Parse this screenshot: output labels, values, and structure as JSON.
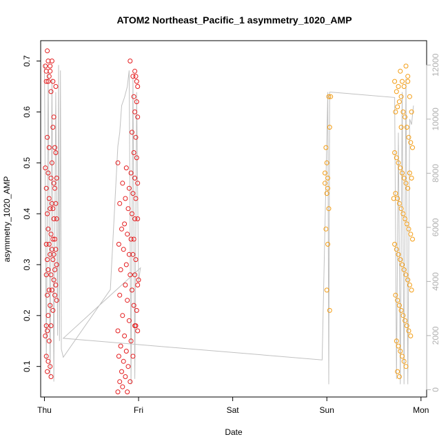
{
  "chart_data": {
    "type": "scatter",
    "title": "ATOM2 Northeast_Pacific_1 asymmetry_1020_AMP",
    "xlabel": "Date",
    "ylabel": "asymmetry_1020_AMP",
    "x_ticks": [
      "Thu",
      "Fri",
      "Sat",
      "Sun",
      "Mon"
    ],
    "x_range_days": [
      -0.04,
      4.06
    ],
    "y_left_ticks": [
      0.1,
      0.2,
      0.3,
      0.4,
      0.5,
      0.6,
      0.7
    ],
    "y_left_range": [
      0.04,
      0.74
    ],
    "y_right_ticks": [
      0,
      2000,
      4000,
      6000,
      8000,
      10000,
      12000
    ],
    "y_right_range": [
      -270,
      12900
    ],
    "grid": false,
    "colors": {
      "series_red": "#e41a1c",
      "series_orange": "#f39c12",
      "line": "#c0c0c0",
      "right_axis": "#b0b0b0"
    },
    "series": [
      {
        "color": "red",
        "points": [
          [
            0.01,
            0.69
          ],
          [
            0.02,
            0.68
          ],
          [
            0.03,
            0.72
          ],
          [
            0.04,
            0.7
          ],
          [
            0.05,
            0.67
          ],
          [
            0.06,
            0.68
          ],
          [
            0.07,
            0.64
          ],
          [
            0.08,
            0.7
          ],
          [
            0.09,
            0.66
          ],
          [
            0.12,
            0.65
          ],
          [
            0.02,
            0.66
          ],
          [
            0.04,
            0.66
          ],
          [
            0.06,
            0.69
          ],
          [
            0.1,
            0.59
          ],
          [
            0.09,
            0.57
          ],
          [
            0.11,
            0.53
          ],
          [
            0.12,
            0.52
          ],
          [
            0.03,
            0.55
          ],
          [
            0.05,
            0.53
          ],
          [
            0.08,
            0.5
          ],
          [
            0.01,
            0.49
          ],
          [
            0.04,
            0.48
          ],
          [
            0.07,
            0.47
          ],
          [
            0.1,
            0.46
          ],
          [
            0.13,
            0.47
          ],
          [
            0.11,
            0.45
          ],
          [
            0.02,
            0.45
          ],
          [
            0.05,
            0.43
          ],
          [
            0.08,
            0.42
          ],
          [
            0.12,
            0.42
          ],
          [
            0.09,
            0.41
          ],
          [
            0.06,
            0.41
          ],
          [
            0.03,
            0.4
          ],
          [
            0.1,
            0.39
          ],
          [
            0.13,
            0.39
          ],
          [
            0.04,
            0.37
          ],
          [
            0.07,
            0.36
          ],
          [
            0.09,
            0.35
          ],
          [
            0.11,
            0.35
          ],
          [
            0.02,
            0.34
          ],
          [
            0.05,
            0.34
          ],
          [
            0.08,
            0.33
          ],
          [
            0.12,
            0.33
          ],
          [
            0.1,
            0.32
          ],
          [
            0.06,
            0.32
          ],
          [
            0.03,
            0.31
          ],
          [
            0.09,
            0.31
          ],
          [
            0.13,
            0.3
          ],
          [
            0.04,
            0.29
          ],
          [
            0.11,
            0.29
          ],
          [
            0.07,
            0.28
          ],
          [
            0.02,
            0.28
          ],
          [
            0.1,
            0.27
          ],
          [
            0.12,
            0.26
          ],
          [
            0.05,
            0.25
          ],
          [
            0.08,
            0.25
          ],
          [
            0.03,
            0.24
          ],
          [
            0.11,
            0.24
          ],
          [
            0.06,
            0.22
          ],
          [
            0.09,
            0.21
          ],
          [
            0.04,
            0.2
          ],
          [
            0.02,
            0.18
          ],
          [
            0.07,
            0.18
          ],
          [
            0.03,
            0.17
          ],
          [
            0.05,
            0.15
          ],
          [
            0.02,
            0.12
          ],
          [
            0.04,
            0.11
          ],
          [
            0.06,
            0.1
          ],
          [
            0.03,
            0.09
          ],
          [
            0.07,
            0.08
          ],
          [
            0.01,
            0.16
          ],
          [
            0.13,
            0.23
          ],
          [
            0.91,
            0.7
          ],
          [
            0.94,
            0.67
          ],
          [
            0.96,
            0.68
          ],
          [
            0.97,
            0.67
          ],
          [
            0.98,
            0.66
          ],
          [
            0.99,
            0.65
          ],
          [
            0.95,
            0.63
          ],
          [
            0.98,
            0.62
          ],
          [
            0.96,
            0.6
          ],
          [
            0.99,
            0.59
          ],
          [
            0.93,
            0.56
          ],
          [
            0.97,
            0.55
          ],
          [
            0.95,
            0.52
          ],
          [
            0.98,
            0.51
          ],
          [
            0.78,
            0.5
          ],
          [
            0.87,
            0.49
          ],
          [
            0.92,
            0.48
          ],
          [
            0.96,
            0.47
          ],
          [
            0.99,
            0.46
          ],
          [
            0.83,
            0.46
          ],
          [
            0.9,
            0.45
          ],
          [
            0.94,
            0.44
          ],
          [
            0.97,
            0.43
          ],
          [
            0.86,
            0.43
          ],
          [
            0.8,
            0.42
          ],
          [
            0.89,
            0.41
          ],
          [
            0.93,
            0.4
          ],
          [
            0.96,
            0.39
          ],
          [
            0.99,
            0.39
          ],
          [
            0.85,
            0.38
          ],
          [
            0.82,
            0.37
          ],
          [
            0.88,
            0.36
          ],
          [
            0.92,
            0.35
          ],
          [
            0.95,
            0.35
          ],
          [
            0.79,
            0.34
          ],
          [
            0.84,
            0.33
          ],
          [
            0.9,
            0.32
          ],
          [
            0.94,
            0.32
          ],
          [
            0.97,
            0.31
          ],
          [
            0.87,
            0.3
          ],
          [
            0.81,
            0.29
          ],
          [
            0.91,
            0.28
          ],
          [
            0.96,
            0.28
          ],
          [
            1.0,
            0.27
          ],
          [
            0.86,
            0.26
          ],
          [
            0.93,
            0.25
          ],
          [
            0.8,
            0.24
          ],
          [
            0.88,
            0.23
          ],
          [
            0.95,
            0.22
          ],
          [
            0.98,
            0.21
          ],
          [
            0.83,
            0.2
          ],
          [
            0.9,
            0.19
          ],
          [
            0.96,
            0.18
          ],
          [
            0.99,
            0.17
          ],
          [
            0.78,
            0.17
          ],
          [
            0.85,
            0.16
          ],
          [
            0.92,
            0.15
          ],
          [
            0.81,
            0.14
          ],
          [
            0.87,
            0.13
          ],
          [
            0.94,
            0.12
          ],
          [
            0.79,
            0.12
          ],
          [
            0.84,
            0.11
          ],
          [
            0.89,
            0.1
          ],
          [
            0.82,
            0.09
          ],
          [
            0.86,
            0.08
          ],
          [
            0.8,
            0.07
          ],
          [
            0.91,
            0.07
          ],
          [
            0.83,
            0.06
          ],
          [
            0.78,
            0.05
          ],
          [
            0.88,
            0.05
          ],
          [
            0.97,
            0.18
          ],
          [
            0.99,
            0.26
          ]
        ]
      },
      {
        "color": "orange",
        "points": [
          [
            2.99,
            0.53
          ],
          [
            3.0,
            0.5
          ],
          [
            3.01,
            0.47
          ],
          [
            2.98,
            0.46
          ],
          [
            3.0,
            0.44
          ],
          [
            3.02,
            0.41
          ],
          [
            2.99,
            0.37
          ],
          [
            3.01,
            0.34
          ],
          [
            3.0,
            0.25
          ],
          [
            3.03,
            0.21
          ],
          [
            3.02,
            0.63
          ],
          [
            3.04,
            0.63
          ],
          [
            3.03,
            0.57
          ],
          [
            2.98,
            0.48
          ],
          [
            3.01,
            0.45
          ],
          [
            3.72,
            0.66
          ],
          [
            3.74,
            0.64
          ],
          [
            3.76,
            0.65
          ],
          [
            3.78,
            0.68
          ],
          [
            3.8,
            0.66
          ],
          [
            3.82,
            0.65
          ],
          [
            3.84,
            0.69
          ],
          [
            3.86,
            0.66
          ],
          [
            3.88,
            0.63
          ],
          [
            3.9,
            0.6
          ],
          [
            3.73,
            0.6
          ],
          [
            3.75,
            0.61
          ],
          [
            3.77,
            0.62
          ],
          [
            3.79,
            0.63
          ],
          [
            3.81,
            0.6
          ],
          [
            3.83,
            0.59
          ],
          [
            3.85,
            0.57
          ],
          [
            3.87,
            0.55
          ],
          [
            3.89,
            0.54
          ],
          [
            3.91,
            0.53
          ],
          [
            3.72,
            0.52
          ],
          [
            3.74,
            0.51
          ],
          [
            3.76,
            0.5
          ],
          [
            3.78,
            0.49
          ],
          [
            3.8,
            0.48
          ],
          [
            3.82,
            0.47
          ],
          [
            3.84,
            0.46
          ],
          [
            3.86,
            0.45
          ],
          [
            3.88,
            0.48
          ],
          [
            3.9,
            0.47
          ],
          [
            3.73,
            0.44
          ],
          [
            3.75,
            0.43
          ],
          [
            3.77,
            0.42
          ],
          [
            3.79,
            0.41
          ],
          [
            3.81,
            0.4
          ],
          [
            3.83,
            0.39
          ],
          [
            3.85,
            0.38
          ],
          [
            3.87,
            0.37
          ],
          [
            3.89,
            0.36
          ],
          [
            3.91,
            0.35
          ],
          [
            3.72,
            0.34
          ],
          [
            3.74,
            0.33
          ],
          [
            3.76,
            0.32
          ],
          [
            3.78,
            0.31
          ],
          [
            3.8,
            0.3
          ],
          [
            3.82,
            0.29
          ],
          [
            3.84,
            0.28
          ],
          [
            3.86,
            0.27
          ],
          [
            3.88,
            0.26
          ],
          [
            3.9,
            0.25
          ],
          [
            3.73,
            0.24
          ],
          [
            3.75,
            0.23
          ],
          [
            3.77,
            0.22
          ],
          [
            3.79,
            0.21
          ],
          [
            3.81,
            0.2
          ],
          [
            3.83,
            0.19
          ],
          [
            3.85,
            0.18
          ],
          [
            3.87,
            0.17
          ],
          [
            3.89,
            0.16
          ],
          [
            3.74,
            0.15
          ],
          [
            3.76,
            0.14
          ],
          [
            3.78,
            0.13
          ],
          [
            3.8,
            0.12
          ],
          [
            3.82,
            0.11
          ],
          [
            3.75,
            0.09
          ],
          [
            3.77,
            0.08
          ],
          [
            3.84,
            0.1
          ],
          [
            3.86,
            0.67
          ],
          [
            3.79,
            0.57
          ],
          [
            3.71,
            0.43
          ]
        ]
      }
    ],
    "line_right_axis": [
      [
        0.0,
        12000
      ],
      [
        0.02,
        1000
      ],
      [
        0.04,
        11800
      ],
      [
        0.06,
        500
      ],
      [
        0.08,
        11500
      ],
      [
        0.1,
        300
      ],
      [
        0.12,
        11000
      ],
      [
        0.14,
        2000
      ],
      [
        0.15,
        12000
      ],
      [
        0.16,
        1800
      ],
      [
        0.17,
        11800
      ],
      [
        0.18,
        1500
      ],
      [
        0.2,
        1200
      ],
      [
        0.7,
        3700
      ],
      [
        0.78,
        9000
      ],
      [
        0.8,
        9500
      ],
      [
        0.82,
        10500
      ],
      [
        0.85,
        10800
      ],
      [
        0.88,
        11200
      ],
      [
        0.9,
        11800
      ],
      [
        0.92,
        200
      ],
      [
        0.94,
        11500
      ],
      [
        0.96,
        400
      ],
      [
        0.98,
        11000
      ],
      [
        1.0,
        4000
      ],
      [
        1.02,
        4500
      ],
      [
        0.2,
        1900
      ],
      [
        2.95,
        1100
      ],
      [
        3.01,
        11000
      ],
      [
        3.02,
        200
      ],
      [
        3.03,
        11000
      ],
      [
        3.04,
        11000
      ],
      [
        3.72,
        10800
      ],
      [
        3.74,
        400
      ],
      [
        3.76,
        9500
      ],
      [
        3.78,
        200
      ],
      [
        3.8,
        11000
      ],
      [
        3.82,
        200
      ],
      [
        3.84,
        11500
      ],
      [
        3.86,
        200
      ],
      [
        3.88,
        10000
      ],
      [
        3.9,
        9800
      ],
      [
        3.92,
        10500
      ]
    ]
  }
}
